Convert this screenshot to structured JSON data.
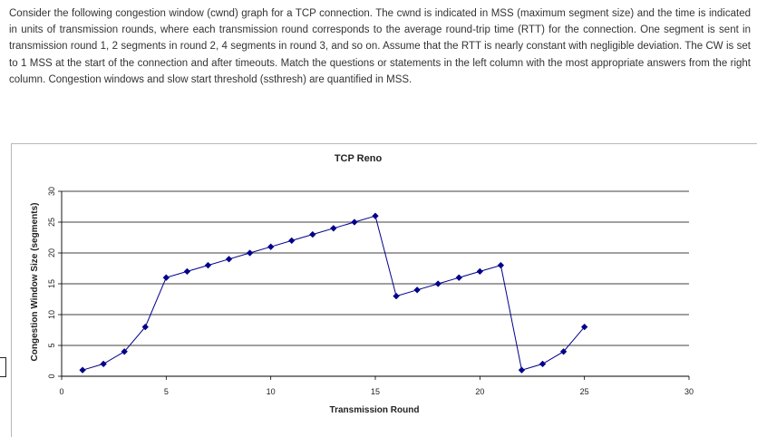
{
  "question": {
    "text": "Consider the following congestion window (cwnd) graph for a TCP connection. The cwnd is indicated in MSS (maximum segment size) and the time is indicated in units of transmission rounds, where each transmission round corresponds to the average round-trip time (RTT) for the connection. One segment is sent in transmission round 1, 2 segments in round 2, 4 segments in round 3, and so on. Assume that the RTT is nearly constant with negligible deviation. The CW is set to 1 MSS at the start of the connection and after timeouts. Match the questions or statements in the left column with the most appropriate answers from the right column. Congestion windows and slow start threshold (ssthresh) are quantified in MSS."
  },
  "chart_data": {
    "type": "line",
    "title": "TCP Reno",
    "xlabel": "Transmission Round",
    "ylabel": "Congestion Window Size (segments)",
    "xlim": [
      0,
      30
    ],
    "ylim": [
      0,
      30
    ],
    "xticks": [
      0,
      5,
      10,
      15,
      20,
      25,
      30
    ],
    "yticks": [
      0,
      5,
      10,
      15,
      20,
      25,
      30
    ],
    "grid": "horizontal",
    "line_color": "#00008b",
    "x": [
      1,
      2,
      3,
      4,
      5,
      6,
      7,
      8,
      9,
      10,
      11,
      12,
      13,
      14,
      15,
      16,
      17,
      18,
      19,
      20,
      21,
      22,
      23,
      24,
      25
    ],
    "y": [
      1,
      2,
      4,
      8,
      16,
      17,
      18,
      19,
      20,
      21,
      22,
      23,
      24,
      25,
      26,
      13,
      14,
      15,
      16,
      17,
      18,
      1,
      2,
      4,
      8
    ]
  }
}
